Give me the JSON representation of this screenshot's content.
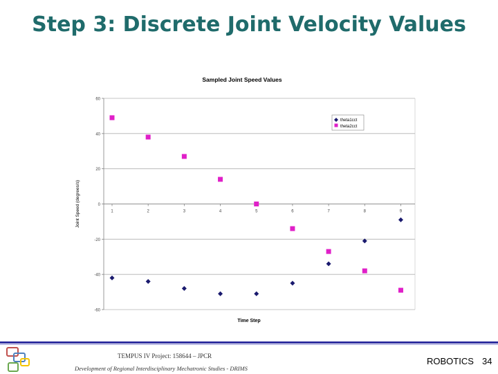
{
  "slide": {
    "title": "Step 3: Discrete Joint Velocity Values"
  },
  "footer": {
    "project": "TEMPUS IV Project: 158644 – JPCR",
    "development": "Development of Regional Interdisciplinary Mechatronic Studies - DRIMS",
    "course": "ROBOTICS",
    "page_number": "34"
  },
  "colors": {
    "title": "#1f6b6b",
    "theta1": "#1a1a6e",
    "theta2": "#e020c8",
    "footer_line": "#3030a0"
  },
  "chart_data": {
    "type": "scatter",
    "title": "Sampled Joint Speed Values",
    "xlabel": "Time Step",
    "ylabel": "Joint Speed (degrees/s)",
    "ylim": [
      -60,
      60
    ],
    "y_ticks": [
      -60,
      -40,
      -20,
      0,
      20,
      40,
      60
    ],
    "x_ticks": [
      1,
      2,
      3,
      4,
      5,
      6,
      7,
      8,
      9
    ],
    "legend_position": "top-right",
    "series": [
      {
        "name": "theta1cct",
        "x": [
          1,
          2,
          3,
          4,
          5,
          6,
          7,
          8,
          9
        ],
        "values": [
          -42,
          -44,
          -48,
          -51,
          -51,
          -45,
          -34,
          -21,
          -9
        ]
      },
      {
        "name": "theta2cct",
        "x": [
          1,
          2,
          3,
          4,
          5,
          6,
          7,
          8,
          9
        ],
        "values": [
          49,
          38,
          27,
          14,
          0,
          -14,
          -27,
          -38,
          -49
        ]
      }
    ]
  }
}
